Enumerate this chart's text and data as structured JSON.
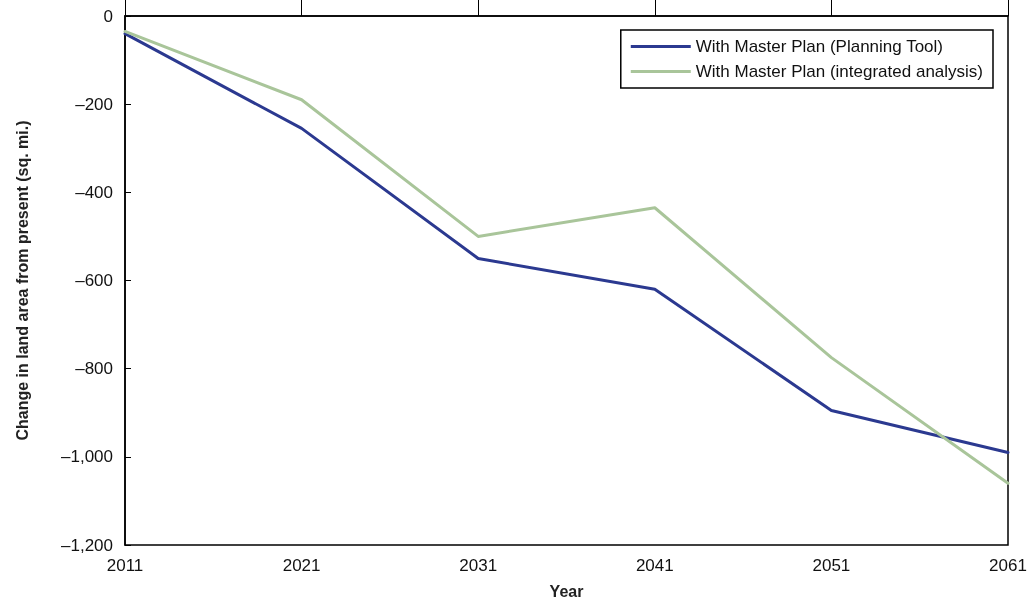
{
  "chart_data": {
    "type": "line",
    "xlabel": "Year",
    "ylabel": "Change in land area from present (sq. mi.)",
    "x": [
      2011,
      2021,
      2031,
      2041,
      2051,
      2061
    ],
    "series": [
      {
        "name": "With Master Plan (Planning Tool)",
        "color": "#2b3990",
        "values": [
          -40,
          -255,
          -550,
          -620,
          -895,
          -990
        ]
      },
      {
        "name": "With Master Plan (integrated analysis)",
        "color": "#a9c59a",
        "values": [
          -35,
          -190,
          -500,
          -435,
          -775,
          -1060
        ]
      }
    ],
    "xlim": [
      2011,
      2061
    ],
    "xticks": [
      2011,
      2021,
      2031,
      2041,
      2051,
      2061
    ],
    "ylim": [
      -1200,
      0
    ],
    "yticks": [
      {
        "value": -1200,
        "label": "–1,200"
      },
      {
        "value": -1000,
        "label": "–1,000"
      },
      {
        "value": -800,
        "label": "–800"
      },
      {
        "value": -600,
        "label": "–600"
      },
      {
        "value": -400,
        "label": "–400"
      },
      {
        "value": -200,
        "label": "–200"
      },
      0
    ],
    "legend": "top right",
    "grid": false,
    "marker": "none",
    "line_style": "solid"
  }
}
